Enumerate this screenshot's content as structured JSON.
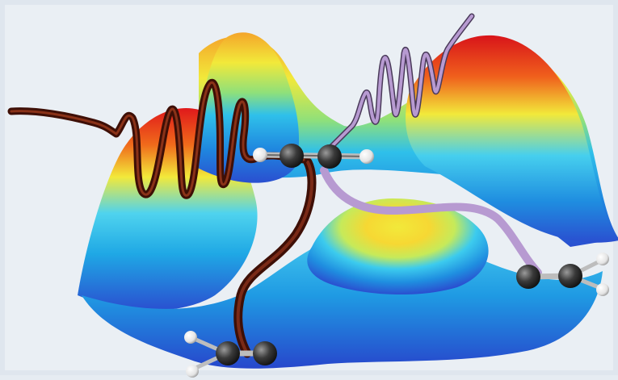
{
  "scene": {
    "description_free": true,
    "colors": {
      "frame_background": "#eaeff4",
      "surface_low": "#2a4fd0",
      "surface_mid_low": "#1fb6e8",
      "surface_mid": "#f2e93a",
      "surface_high": "#e0191b",
      "pulse_dark": "#5a1a0c",
      "pulse_light": "#b79ad1",
      "carbon_atom": "#3a3a3a",
      "hydrogen_atom": "#f2f2f2"
    },
    "icons": {
      "molecule_top": "acetylene-molecule-icon",
      "molecule_bottom_left": "vinylidene-molecule-icon",
      "molecule_right": "vinylidene-molecule-icon"
    }
  }
}
